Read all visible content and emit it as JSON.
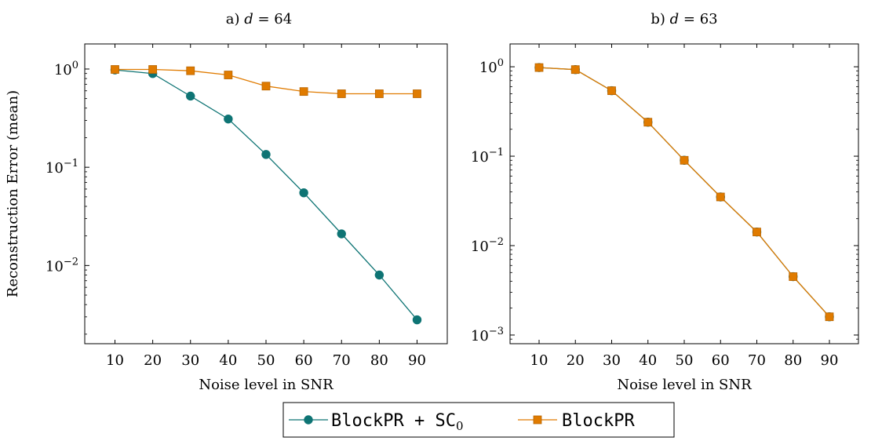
{
  "figure": {
    "legend": {
      "placement": "bottom-center",
      "entries": [
        {
          "label_main": "BlockPR + SC",
          "label_sub": "0",
          "color": "#0e7474",
          "marker": "circle"
        },
        {
          "label_main": "BlockPR",
          "label_sub": "",
          "color": "#e07b00",
          "marker": "square"
        }
      ]
    }
  },
  "chart_data": [
    {
      "type": "line",
      "title_prefix": "a) ",
      "title_var": "d",
      "title_rest": " = 64",
      "xlabel": "Noise level in SNR",
      "ylabel": "Reconstruction Error (mean)",
      "yscale": "log",
      "xlim": [
        2,
        98
      ],
      "ylim": [
        0.0016,
        1.8
      ],
      "grid": false,
      "x": [
        10,
        20,
        30,
        40,
        50,
        60,
        70,
        80,
        90
      ],
      "xticks": [
        10,
        20,
        30,
        40,
        50,
        60,
        70,
        80,
        90
      ],
      "yticks": [
        {
          "value": 1,
          "base": "10",
          "exp": "0"
        },
        {
          "value": 0.1,
          "base": "10",
          "exp": "−1"
        },
        {
          "value": 0.01,
          "base": "10",
          "exp": "−2"
        }
      ],
      "series": [
        {
          "name": "BlockPR + SC0",
          "color": "#0e7474",
          "marker": "circle",
          "values": [
            0.98,
            0.9,
            0.53,
            0.31,
            0.135,
            0.055,
            0.021,
            0.008,
            0.0028
          ]
        },
        {
          "name": "BlockPR",
          "color": "#e07b00",
          "marker": "square",
          "values": [
            0.99,
            0.99,
            0.96,
            0.87,
            0.67,
            0.59,
            0.56,
            0.56,
            0.56
          ]
        }
      ]
    },
    {
      "type": "line",
      "title_prefix": "b) ",
      "title_var": "d",
      "title_rest": " = 63",
      "xlabel": "Noise level in SNR",
      "ylabel": "",
      "yscale": "log",
      "xlim": [
        2,
        98
      ],
      "ylim": [
        0.0008,
        1.8
      ],
      "grid": false,
      "x": [
        10,
        20,
        30,
        40,
        50,
        60,
        70,
        80,
        90
      ],
      "xticks": [
        10,
        20,
        30,
        40,
        50,
        60,
        70,
        80,
        90
      ],
      "yticks": [
        {
          "value": 1,
          "base": "10",
          "exp": "0"
        },
        {
          "value": 0.1,
          "base": "10",
          "exp": "−1"
        },
        {
          "value": 0.01,
          "base": "10",
          "exp": "−2"
        },
        {
          "value": 0.001,
          "base": "10",
          "exp": "−3"
        }
      ],
      "series": [
        {
          "name": "BlockPR + SC0",
          "color": "#0e7474",
          "marker": "circle",
          "values": [
            0.98,
            0.93,
            0.54,
            0.24,
            0.09,
            0.035,
            0.0142,
            0.0045,
            0.0016
          ]
        },
        {
          "name": "BlockPR",
          "color": "#e07b00",
          "marker": "square",
          "values": [
            0.98,
            0.93,
            0.54,
            0.24,
            0.09,
            0.035,
            0.0142,
            0.0045,
            0.0016
          ]
        }
      ]
    }
  ]
}
